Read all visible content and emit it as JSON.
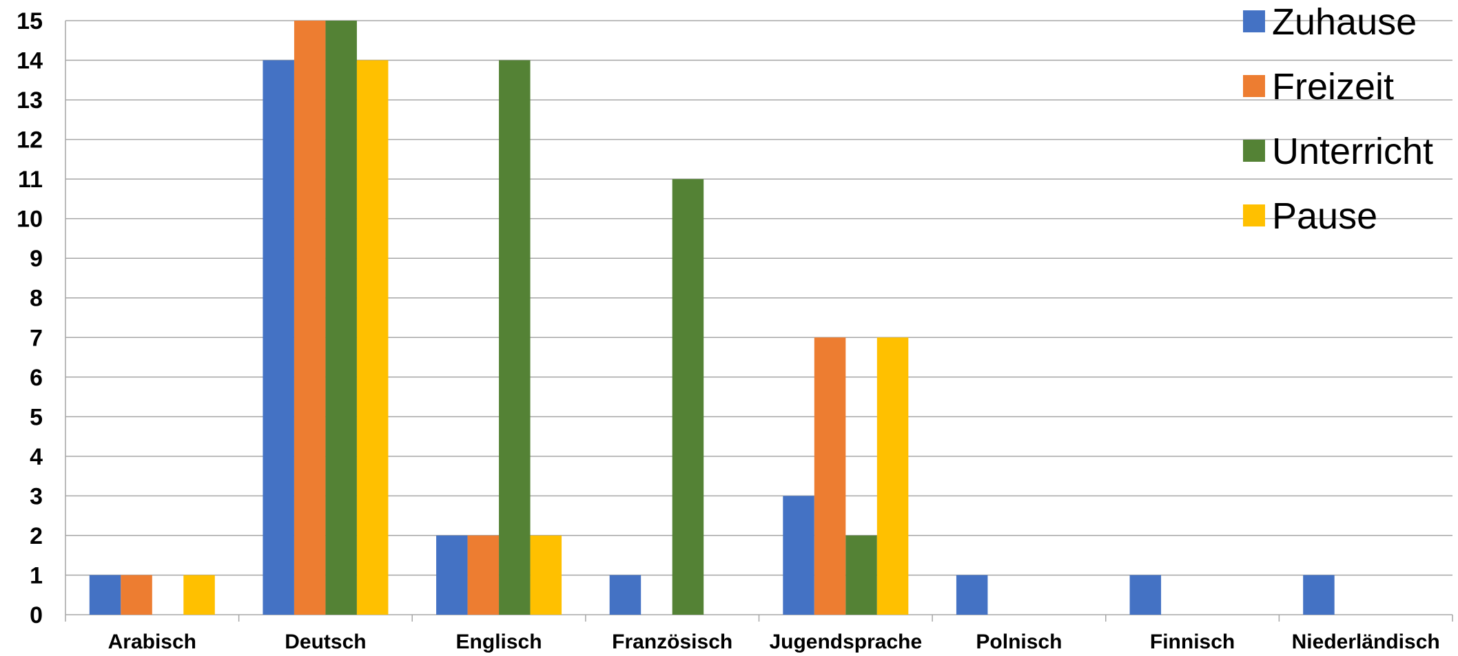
{
  "chart_data": {
    "type": "bar",
    "title": "",
    "xlabel": "",
    "ylabel": "",
    "ylim": [
      0,
      15
    ],
    "yticks": [
      0,
      1,
      2,
      3,
      4,
      5,
      6,
      7,
      8,
      9,
      10,
      11,
      12,
      13,
      14,
      15
    ],
    "grid": true,
    "legend_position": "top-right",
    "categories": [
      "Arabisch",
      "Deutsch",
      "Englisch",
      "Französisch",
      "Jugendsprache",
      "Polnisch",
      "Finnisch",
      "Niederländisch"
    ],
    "series": [
      {
        "name": "Zuhause",
        "color": "#4472C4",
        "values": [
          1,
          14,
          2,
          1,
          3,
          1,
          1,
          1
        ]
      },
      {
        "name": "Freizeit",
        "color": "#ED7D31",
        "values": [
          1,
          15,
          2,
          0,
          7,
          0,
          0,
          0
        ]
      },
      {
        "name": "Unterricht",
        "color": "#548235",
        "values": [
          0,
          15,
          14,
          11,
          2,
          0,
          0,
          0
        ]
      },
      {
        "name": "Pause",
        "color": "#FFC000",
        "values": [
          1,
          14,
          2,
          0,
          7,
          0,
          0,
          0
        ]
      }
    ]
  }
}
